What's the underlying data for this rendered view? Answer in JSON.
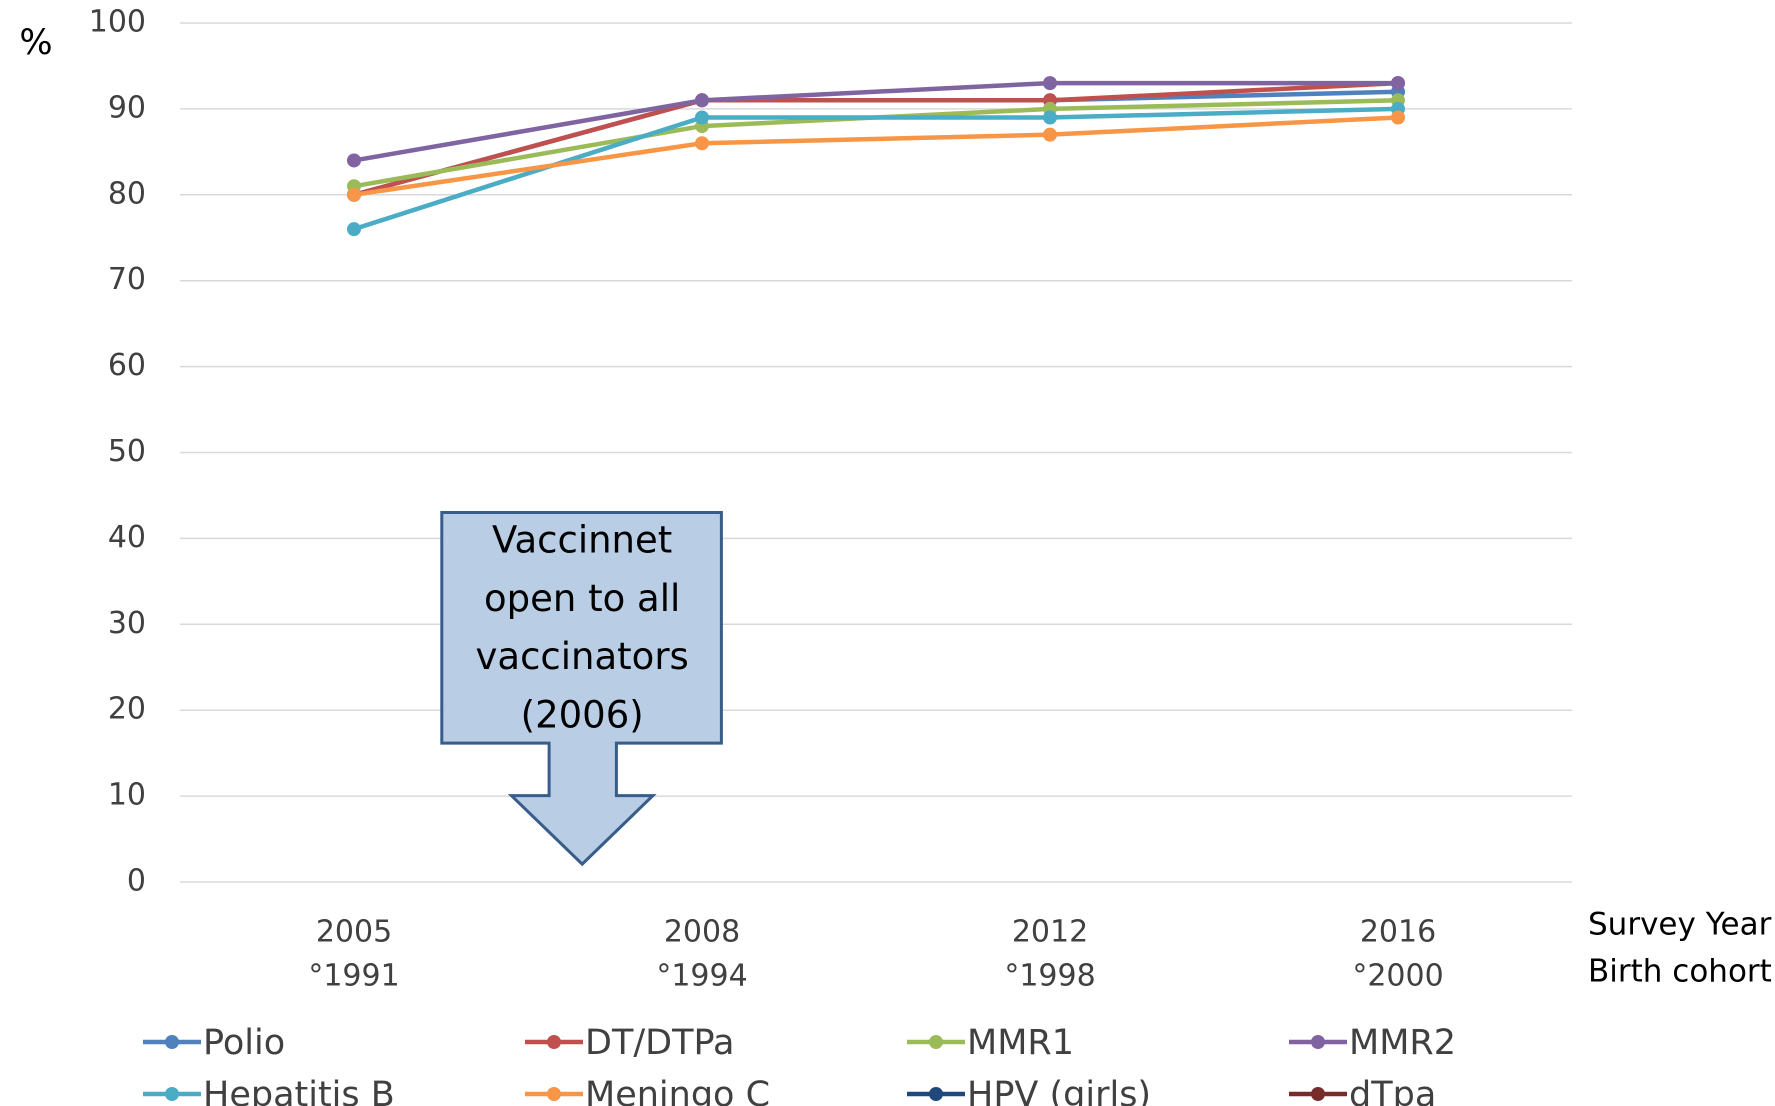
{
  "chart_data": {
    "type": "line",
    "y_label": "%",
    "x_label_top": "Survey Year",
    "x_label_bottom": "Birth cohort",
    "categories": [
      "2005",
      "2008",
      "2012",
      "2016"
    ],
    "birth_cohorts": [
      "°1991",
      "°1994",
      "°1998",
      "°2000"
    ],
    "series": [
      {
        "name": "Polio",
        "color": "#4f81bd",
        "values": [
          80,
          91,
          91,
          92
        ]
      },
      {
        "name": "DT/DTPa",
        "color": "#c0504d",
        "values": [
          80,
          91,
          91,
          93
        ]
      },
      {
        "name": "MMR1",
        "color": "#9bbb59",
        "values": [
          81,
          88,
          90,
          91
        ]
      },
      {
        "name": "MMR2",
        "color": "#8064a2",
        "values": [
          84,
          91,
          93,
          93
        ]
      },
      {
        "name": "Hepatitis B",
        "color": "#4bacc6",
        "values": [
          76,
          89,
          89,
          90
        ]
      },
      {
        "name": "Meningo C",
        "color": "#f79646",
        "values": [
          80,
          86,
          87,
          89
        ]
      },
      {
        "name": "HPV (girls)",
        "color": "#1f497d",
        "values": [
          null,
          null,
          null,
          null
        ]
      },
      {
        "name": "dTpa",
        "color": "#772c2a",
        "values": [
          null,
          null,
          null,
          null
        ]
      }
    ],
    "ylim": [
      0,
      100
    ],
    "yticks": [
      0,
      10,
      20,
      30,
      40,
      50,
      60,
      70,
      80,
      90,
      100
    ],
    "grid": true,
    "annotation": [
      "Vaccinnet",
      "open to all",
      "vaccinators",
      "(2006)"
    ]
  }
}
